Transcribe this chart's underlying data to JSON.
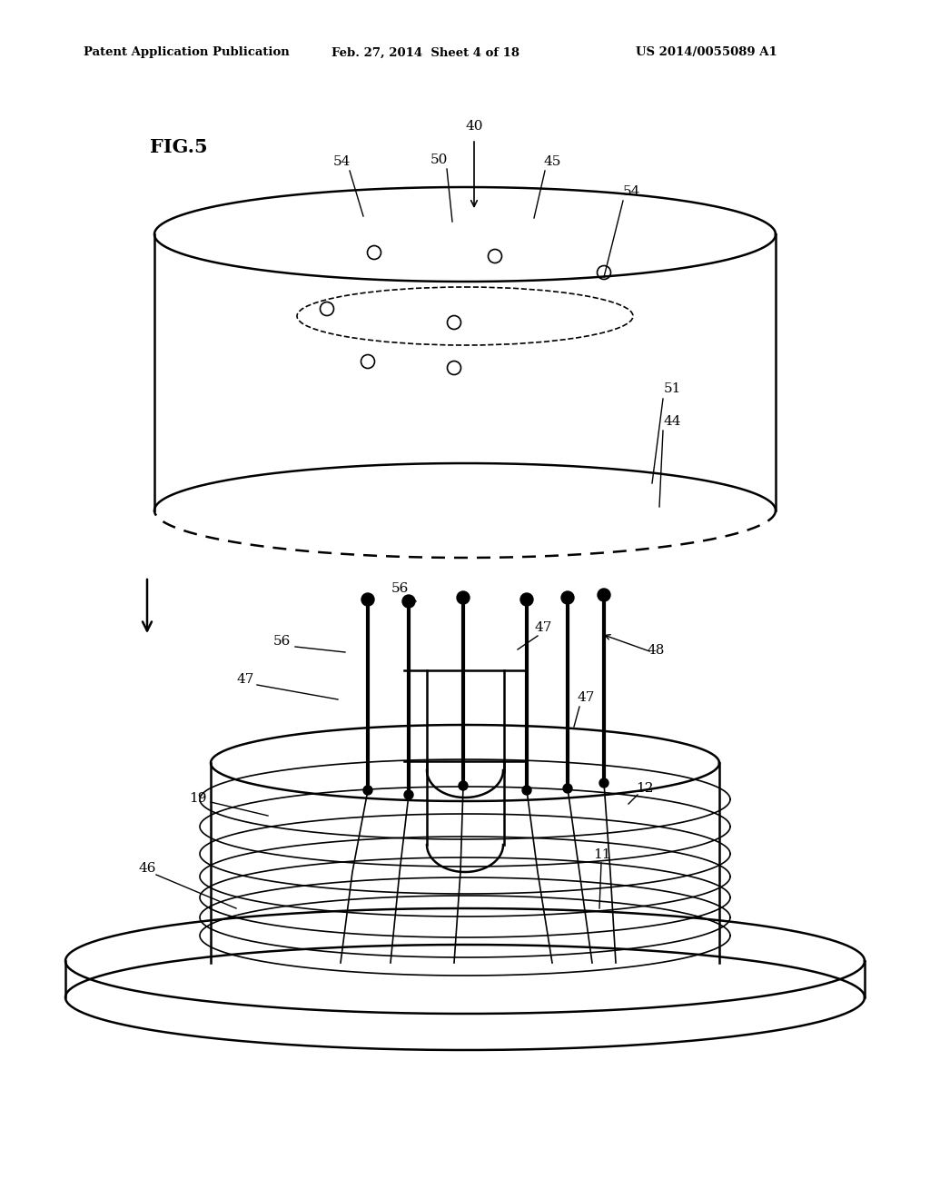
{
  "header_left": "Patent Application Publication",
  "header_center": "Feb. 27, 2014  Sheet 4 of 18",
  "header_right": "US 2014/0055089 A1",
  "fig_label": "FIG.5",
  "background": "#ffffff",
  "line_color": "#000000"
}
